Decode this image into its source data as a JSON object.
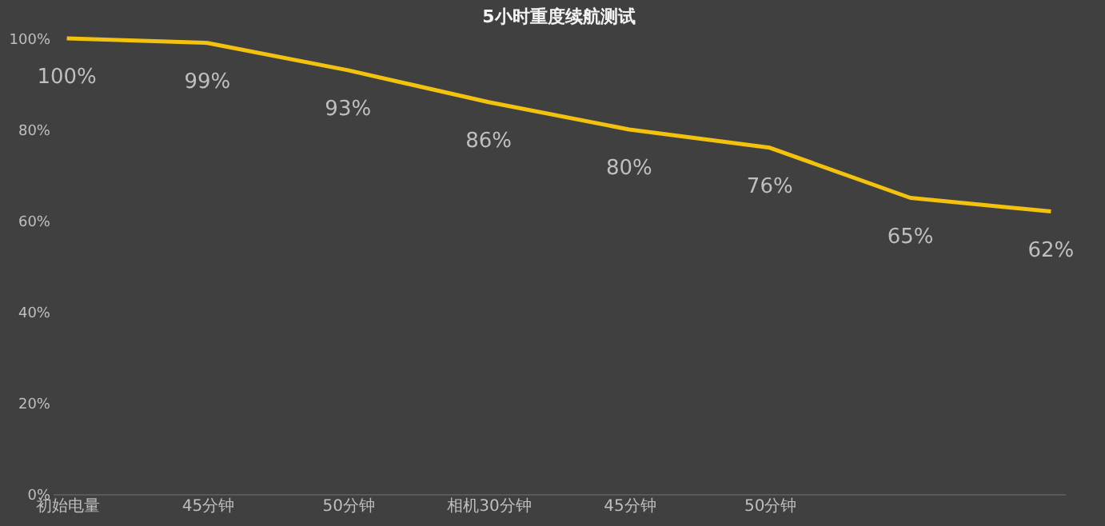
{
  "chart_data": {
    "type": "line",
    "title": "5小时重度续航测试",
    "categories": [
      "初始电量",
      "45分钟",
      "50分钟",
      "相机30分钟",
      "45分钟",
      "50分钟",
      null,
      null
    ],
    "series": [
      {
        "color": "#f2c20f",
        "values": [
          100,
          99,
          93,
          86,
          80,
          76,
          65,
          62
        ]
      }
    ],
    "value_labels": [
      "100%",
      "99%",
      "93%",
      "86%",
      "80%",
      "76%",
      "65%",
      "62%"
    ],
    "ylim": [
      0,
      100
    ],
    "yticks": [
      {
        "value": 0,
        "label": "0%"
      },
      {
        "value": 20,
        "label": "20%"
      },
      {
        "value": 40,
        "label": "40%"
      },
      {
        "value": 60,
        "label": "60%"
      },
      {
        "value": 80,
        "label": "80%"
      },
      {
        "value": 100,
        "label": "100%"
      }
    ],
    "grid": false,
    "marker": "none",
    "line_style": "solid"
  }
}
